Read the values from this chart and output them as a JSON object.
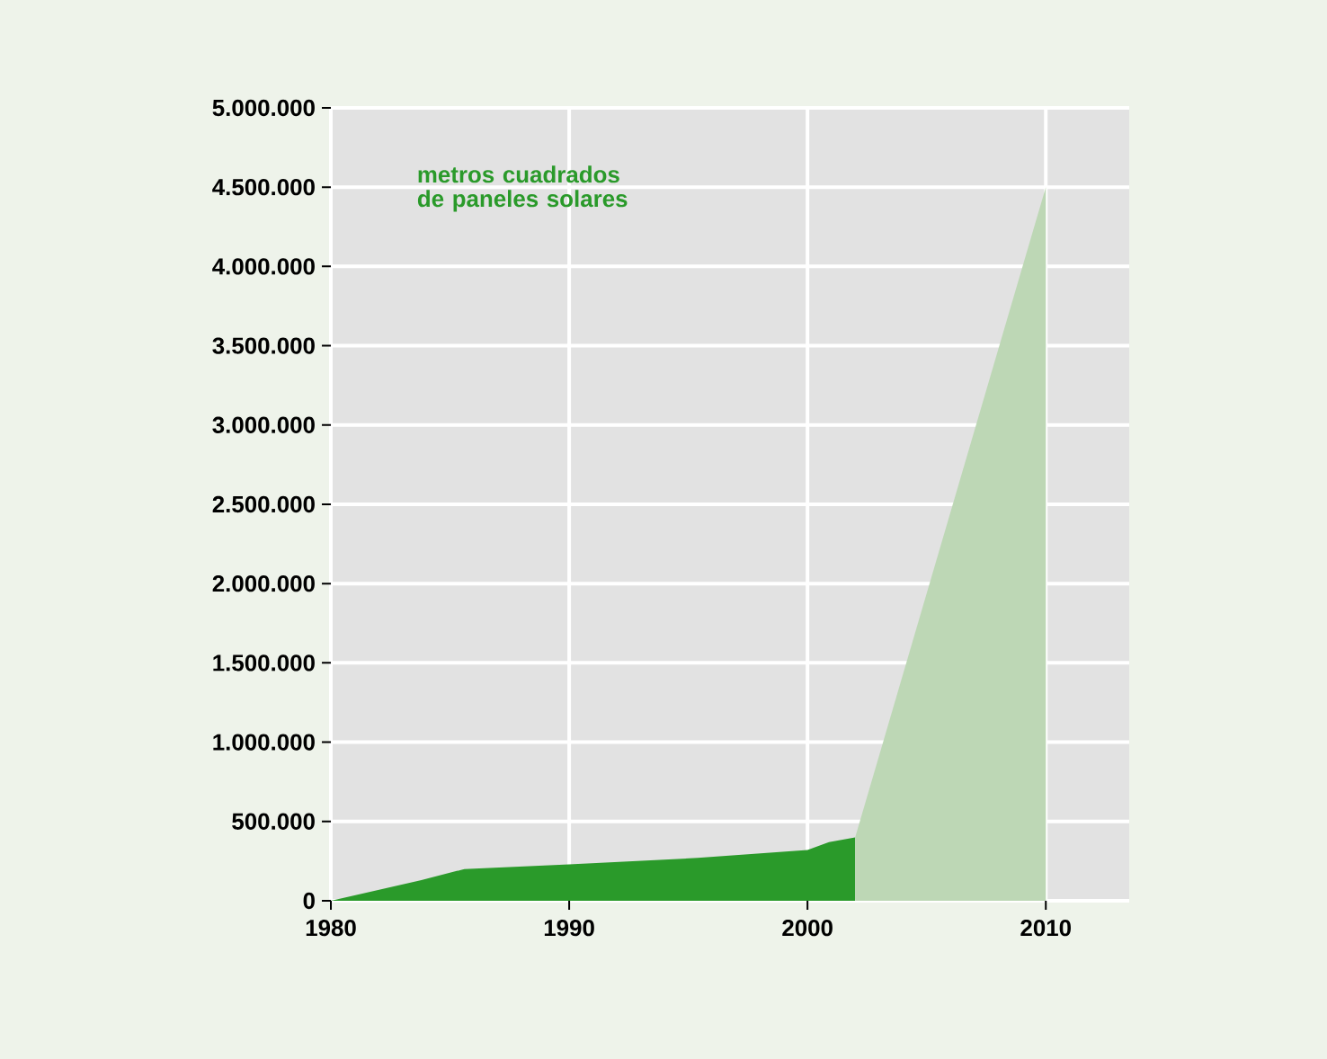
{
  "chart_data": {
    "type": "area",
    "xlim": [
      1980,
      2013.5
    ],
    "xticks": [
      1980,
      1990,
      2000,
      2010
    ],
    "ylim": [
      0,
      5000000
    ],
    "yticks": [
      0,
      {
        "value": 500000,
        "label": "500.000"
      },
      {
        "value": 1000000,
        "label": "1.000.000"
      },
      {
        "value": 1500000,
        "label": "1.500.000"
      },
      {
        "value": 2000000,
        "label": "2.000.000"
      },
      {
        "value": 2500000,
        "label": "2.500.000"
      },
      {
        "value": 3000000,
        "label": "3.000.000"
      },
      {
        "value": 3500000,
        "label": "3.500.000"
      },
      {
        "value": 4000000,
        "label": "4.000.000"
      },
      {
        "value": 4500000,
        "label": "4.500.000"
      },
      {
        "value": 5000000,
        "label": "5.000.000"
      }
    ],
    "grid": true,
    "series": [
      {
        "name": "metros cuadrados de paneles solares",
        "color": "#2a9a2a",
        "x": [
          1980,
          1983.8,
          1985.6,
          1990,
          1995.4,
          2000,
          2000.9,
          2002
        ],
        "values": [
          0,
          130000,
          200000,
          230000,
          270000,
          320000,
          370000,
          400000
        ]
      },
      {
        "color": "#bdd7b5",
        "x": [
          2002,
          2010
        ],
        "values": [
          400000,
          4500000
        ]
      }
    ]
  }
}
